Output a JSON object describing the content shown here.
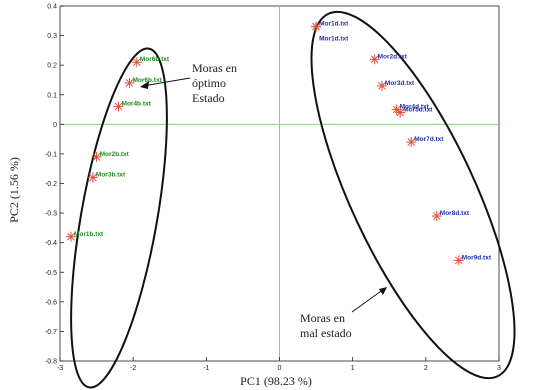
{
  "chart_data": {
    "type": "scatter",
    "title": "",
    "xlabel": "PC1 (98.23 %)",
    "ylabel": "PC2 (1.56 %)",
    "xlim": [
      -3,
      3
    ],
    "ylim": [
      -0.8,
      0.4
    ],
    "xticks": [
      "-3",
      "-2",
      "-1",
      "0",
      "1",
      "2",
      "3"
    ],
    "yticks": [
      "0.4",
      "0.3",
      "0.2",
      "0.1",
      "0",
      "-0.1",
      "-0.2",
      "-0.3",
      "-0.4",
      "-0.5",
      "-0.6",
      "-0.7",
      "-0.8"
    ],
    "grid": false,
    "colors": {
      "good": "#1e8a1e",
      "bad": "#1e2ea8",
      "marker": "#e0503a",
      "zero_lines": "#7ddc6e",
      "ellipse": "#111111"
    },
    "series": [
      {
        "group": "good",
        "points": [
          {
            "x": -1.95,
            "y": 0.21,
            "label": "Mor6b.txt"
          },
          {
            "x": -2.05,
            "y": 0.14,
            "label": "Mor6b.txt"
          },
          {
            "x": -2.2,
            "y": 0.06,
            "label": "Mor4b.txt"
          },
          {
            "x": -2.5,
            "y": -0.11,
            "label": "Mor2b.txt"
          },
          {
            "x": -2.55,
            "y": -0.18,
            "label": "Mor3b.txt"
          },
          {
            "x": -2.85,
            "y": -0.38,
            "label": "Mor1b.txt"
          }
        ]
      },
      {
        "group": "bad",
        "points": [
          {
            "x": 0.5,
            "y": 0.33,
            "label": "Mor1d.txt"
          },
          {
            "x": 0.5,
            "y": 0.33,
            "label": "Mor1d.txt"
          },
          {
            "x": 1.3,
            "y": 0.22,
            "label": "Mor2d.txt"
          },
          {
            "x": 1.4,
            "y": 0.13,
            "label": "Mor3d.txt"
          },
          {
            "x": 1.6,
            "y": 0.05,
            "label": "Mor4d.txt"
          },
          {
            "x": 1.65,
            "y": 0.04,
            "label": "Mor5d.txt"
          },
          {
            "x": 1.8,
            "y": -0.06,
            "label": "Mor7d.txt"
          },
          {
            "x": 2.15,
            "y": -0.31,
            "label": "Mor8d.txt"
          },
          {
            "x": 2.45,
            "y": -0.46,
            "label": "Mor9d.txt"
          }
        ]
      }
    ],
    "annotations": [
      {
        "text_lines": [
          "Moras en",
          "óptimo",
          "Estado"
        ]
      },
      {
        "text_lines": [
          "Moras en",
          "mal estado"
        ]
      }
    ]
  }
}
